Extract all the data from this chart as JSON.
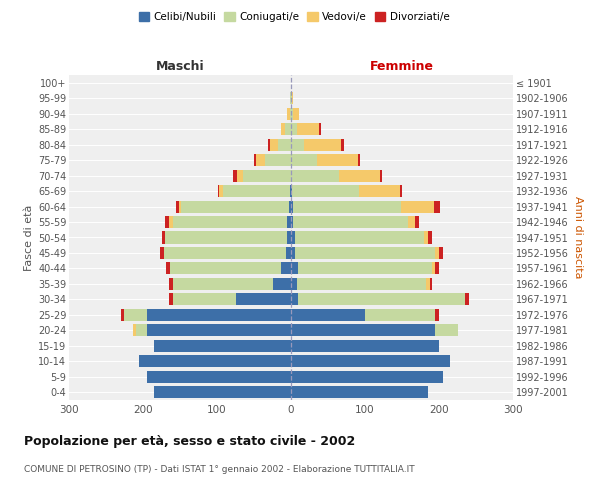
{
  "age_groups": [
    "0-4",
    "5-9",
    "10-14",
    "15-19",
    "20-24",
    "25-29",
    "30-34",
    "35-39",
    "40-44",
    "45-49",
    "50-54",
    "55-59",
    "60-64",
    "65-69",
    "70-74",
    "75-79",
    "80-84",
    "85-89",
    "90-94",
    "95-99",
    "100+"
  ],
  "birth_years": [
    "1997-2001",
    "1992-1996",
    "1987-1991",
    "1982-1986",
    "1977-1981",
    "1972-1976",
    "1967-1971",
    "1962-1966",
    "1957-1961",
    "1952-1956",
    "1947-1951",
    "1942-1946",
    "1937-1941",
    "1932-1936",
    "1927-1931",
    "1922-1926",
    "1917-1921",
    "1912-1916",
    "1907-1911",
    "1902-1906",
    "≤ 1901"
  ],
  "male": {
    "celibe": [
      185,
      195,
      205,
      185,
      195,
      195,
      75,
      25,
      14,
      7,
      5,
      5,
      3,
      2,
      0,
      0,
      0,
      0,
      0,
      0,
      0
    ],
    "coniugato": [
      0,
      0,
      0,
      0,
      15,
      30,
      85,
      135,
      150,
      165,
      165,
      155,
      145,
      90,
      65,
      35,
      18,
      8,
      2,
      1,
      0
    ],
    "vedovo": [
      0,
      0,
      0,
      0,
      3,
      0,
      0,
      0,
      0,
      0,
      0,
      5,
      3,
      5,
      8,
      12,
      10,
      5,
      3,
      1,
      0
    ],
    "divorziato": [
      0,
      0,
      0,
      0,
      0,
      5,
      5,
      5,
      5,
      5,
      5,
      5,
      5,
      2,
      5,
      3,
      3,
      0,
      0,
      0,
      0
    ]
  },
  "female": {
    "nubile": [
      185,
      205,
      215,
      200,
      195,
      100,
      10,
      8,
      10,
      5,
      5,
      3,
      3,
      2,
      0,
      0,
      0,
      0,
      0,
      0,
      0
    ],
    "coniugata": [
      0,
      0,
      0,
      0,
      30,
      95,
      225,
      175,
      180,
      190,
      175,
      155,
      145,
      90,
      65,
      35,
      18,
      8,
      3,
      1,
      0
    ],
    "vedova": [
      0,
      0,
      0,
      0,
      0,
      0,
      0,
      5,
      5,
      5,
      5,
      10,
      45,
      55,
      55,
      55,
      50,
      30,
      8,
      2,
      0
    ],
    "divorziata": [
      0,
      0,
      0,
      0,
      0,
      5,
      5,
      3,
      5,
      5,
      5,
      5,
      8,
      3,
      3,
      3,
      3,
      3,
      0,
      0,
      0
    ]
  },
  "colors": {
    "celibe": "#3d6fa8",
    "coniugato": "#c5d9a0",
    "vedovo": "#f5c96a",
    "divorziato": "#cc2222"
  },
  "legend_labels": [
    "Celibi/Nubili",
    "Coniugati/e",
    "Vedovi/e",
    "Divorziati/e"
  ],
  "legend_colors": [
    "#3d6fa8",
    "#c5d9a0",
    "#f5c96a",
    "#cc2222"
  ],
  "title": "Popolazione per età, sesso e stato civile - 2002",
  "subtitle": "COMUNE DI PETROSINO (TP) - Dati ISTAT 1° gennaio 2002 - Elaborazione TUTTITALIA.IT",
  "xlabel_left": "Maschi",
  "xlabel_right": "Femmine",
  "ylabel_left": "Fasce di età",
  "ylabel_right": "Anni di nascita",
  "xlim": 300,
  "background_color": "#ffffff",
  "plot_bg_color": "#efefef"
}
